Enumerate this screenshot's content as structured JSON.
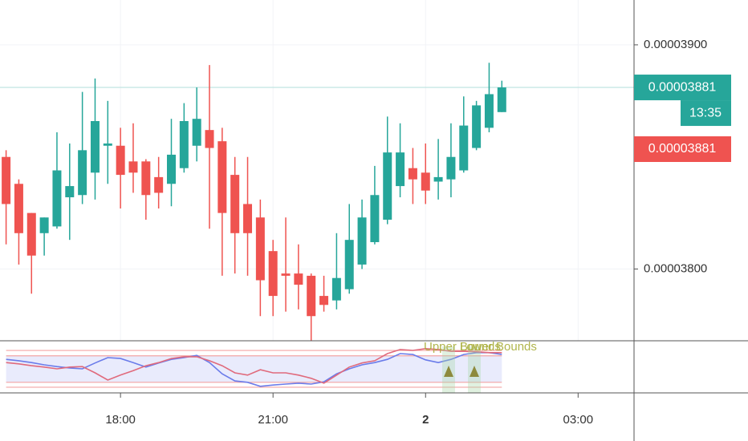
{
  "chart_data": [
    {
      "type": "candlestick",
      "x": [
        15.75,
        16,
        16.25,
        16.5,
        16.75,
        17,
        17.25,
        17.5,
        17.75,
        18,
        18.25,
        18.5,
        18.75,
        19,
        19.25,
        19.5,
        19.75,
        20,
        20.25,
        20.5,
        20.75,
        21,
        21.25,
        21.5,
        21.75,
        22,
        22.25,
        22.5,
        22.75,
        23,
        23.25,
        23.5,
        23.75,
        24,
        24.25,
        24.5,
        24.75,
        25,
        25.25,
        25.5
      ],
      "open": [
        3.85e-05,
        3.838e-05,
        3.825e-05,
        3.816e-05,
        3.819e-05,
        3.832e-05,
        3.833e-05,
        3.843e-05,
        3.855e-05,
        3.855e-05,
        3.848e-05,
        3.848e-05,
        3.841e-05,
        3.838e-05,
        3.845e-05,
        3.855e-05,
        3.862e-05,
        3.857e-05,
        3.842e-05,
        3.829e-05,
        3.823e-05,
        3.808e-05,
        3.798e-05,
        3.798e-05,
        3.797e-05,
        3.788e-05,
        3.786e-05,
        3.791e-05,
        3.802e-05,
        3.812e-05,
        3.822e-05,
        3.837e-05,
        3.845e-05,
        3.843e-05,
        3.839e-05,
        3.84e-05,
        3.844e-05,
        3.854e-05,
        3.863e-05,
        3.87e-05
      ],
      "high": [
        3.853e-05,
        3.84e-05,
        3.825e-05,
        3.823e-05,
        3.861e-05,
        3.856e-05,
        3.879e-05,
        3.885e-05,
        3.875e-05,
        3.863e-05,
        3.865e-05,
        3.849e-05,
        3.85e-05,
        3.867e-05,
        3.874e-05,
        3.881e-05,
        3.891e-05,
        3.863e-05,
        3.85e-05,
        3.85e-05,
        3.831e-05,
        3.813e-05,
        3.823e-05,
        3.811e-05,
        3.798e-05,
        3.797e-05,
        3.816e-05,
        3.829e-05,
        3.831e-05,
        3.846e-05,
        3.868e-05,
        3.865e-05,
        3.854e-05,
        3.856e-05,
        3.858e-05,
        3.865e-05,
        3.877e-05,
        3.875e-05,
        3.892e-05,
        3.884e-05
      ],
      "low": [
        3.811e-05,
        3.802e-05,
        3.789e-05,
        3.806e-05,
        3.818e-05,
        3.813e-05,
        3.829e-05,
        3.831e-05,
        3.838e-05,
        3.827e-05,
        3.834e-05,
        3.822e-05,
        3.827e-05,
        3.828e-05,
        3.843e-05,
        3.848e-05,
        3.818e-05,
        3.797e-05,
        3.798e-05,
        3.797e-05,
        3.779e-05,
        3.779e-05,
        3.781e-05,
        3.782e-05,
        3.768e-05,
        3.781e-05,
        3.782e-05,
        3.789e-05,
        3.8e-05,
        3.811e-05,
        3.82e-05,
        3.832e-05,
        3.829e-05,
        3.829e-05,
        3.831e-05,
        3.832e-05,
        3.843e-05,
        3.853e-05,
        3.861e-05,
        3.87e-05
      ],
      "close": [
        3.829e-05,
        3.816e-05,
        3.806e-05,
        3.823e-05,
        3.844e-05,
        3.837e-05,
        3.853e-05,
        3.866e-05,
        3.856e-05,
        3.842e-05,
        3.843e-05,
        3.833e-05,
        3.834e-05,
        3.851e-05,
        3.866e-05,
        3.867e-05,
        3.854e-05,
        3.825e-05,
        3.816e-05,
        3.816e-05,
        3.795e-05,
        3.788e-05,
        3.797e-05,
        3.793e-05,
        3.779e-05,
        3.784e-05,
        3.796e-05,
        3.813e-05,
        3.823e-05,
        3.833e-05,
        3.852e-05,
        3.852e-05,
        3.84e-05,
        3.835e-05,
        3.841e-05,
        3.85e-05,
        3.864e-05,
        3.873e-05,
        3.878e-05,
        3.881e-05
      ],
      "up_color": "#26a69a",
      "down_color": "#ef5350",
      "xlim": [
        15.63,
        28.1
      ],
      "xticks": [
        {
          "value": 18,
          "label": "18:00"
        },
        {
          "value": 21,
          "label": "21:00"
        },
        {
          "value": 24,
          "label": "2"
        },
        {
          "value": 27,
          "label": "03:00"
        }
      ],
      "ylim": [
        3.768e-05,
        3.92e-05
      ],
      "yticks": [
        {
          "value": 3.8e-05,
          "label": "0.00003800"
        },
        {
          "value": 3.9e-05,
          "label": "0.00003900"
        }
      ],
      "grid": true,
      "last_price": {
        "value": 3.881e-05,
        "label": "0.00003881"
      },
      "countdown": "13:35",
      "price_marker": "0.00003881"
    },
    {
      "type": "line",
      "x": [
        15.75,
        16,
        16.25,
        16.5,
        16.75,
        17,
        17.25,
        17.5,
        17.75,
        18,
        18.25,
        18.5,
        18.75,
        19,
        19.25,
        19.5,
        19.75,
        20,
        20.25,
        20.5,
        20.75,
        21,
        21.25,
        21.5,
        21.75,
        22,
        22.25,
        22.5,
        22.75,
        23,
        23.25,
        23.5,
        23.75,
        24,
        24.25,
        24.5,
        24.75,
        25,
        25.25,
        25.5
      ],
      "xlim": [
        15.63,
        28.1
      ],
      "ylim": [
        0,
        100
      ],
      "levels": [
        91,
        79,
        20,
        9
      ],
      "series": [
        {
          "color": "#6b7cea",
          "values": [
            71,
            68,
            64,
            59,
            55,
            52,
            50,
            63,
            75,
            73,
            64,
            54,
            63,
            71,
            75,
            80,
            64,
            39,
            23,
            20,
            11,
            14,
            16,
            18,
            16,
            21,
            39,
            50,
            59,
            64,
            71,
            84,
            82,
            70,
            64,
            71,
            82,
            86,
            86,
            82
          ]
        },
        {
          "color": "#e06a7c",
          "values": [
            64,
            61,
            57,
            54,
            50,
            54,
            55,
            41,
            25,
            36,
            46,
            57,
            64,
            73,
            77,
            77,
            68,
            57,
            41,
            36,
            48,
            41,
            41,
            36,
            29,
            18,
            36,
            54,
            63,
            68,
            84,
            93,
            91,
            95,
            93,
            89,
            89,
            88,
            86,
            86
          ]
        }
      ],
      "annotations": [
        "Upper Bounds",
        "Lower Bounds"
      ],
      "annotation_color": "#a9ad3a"
    }
  ]
}
